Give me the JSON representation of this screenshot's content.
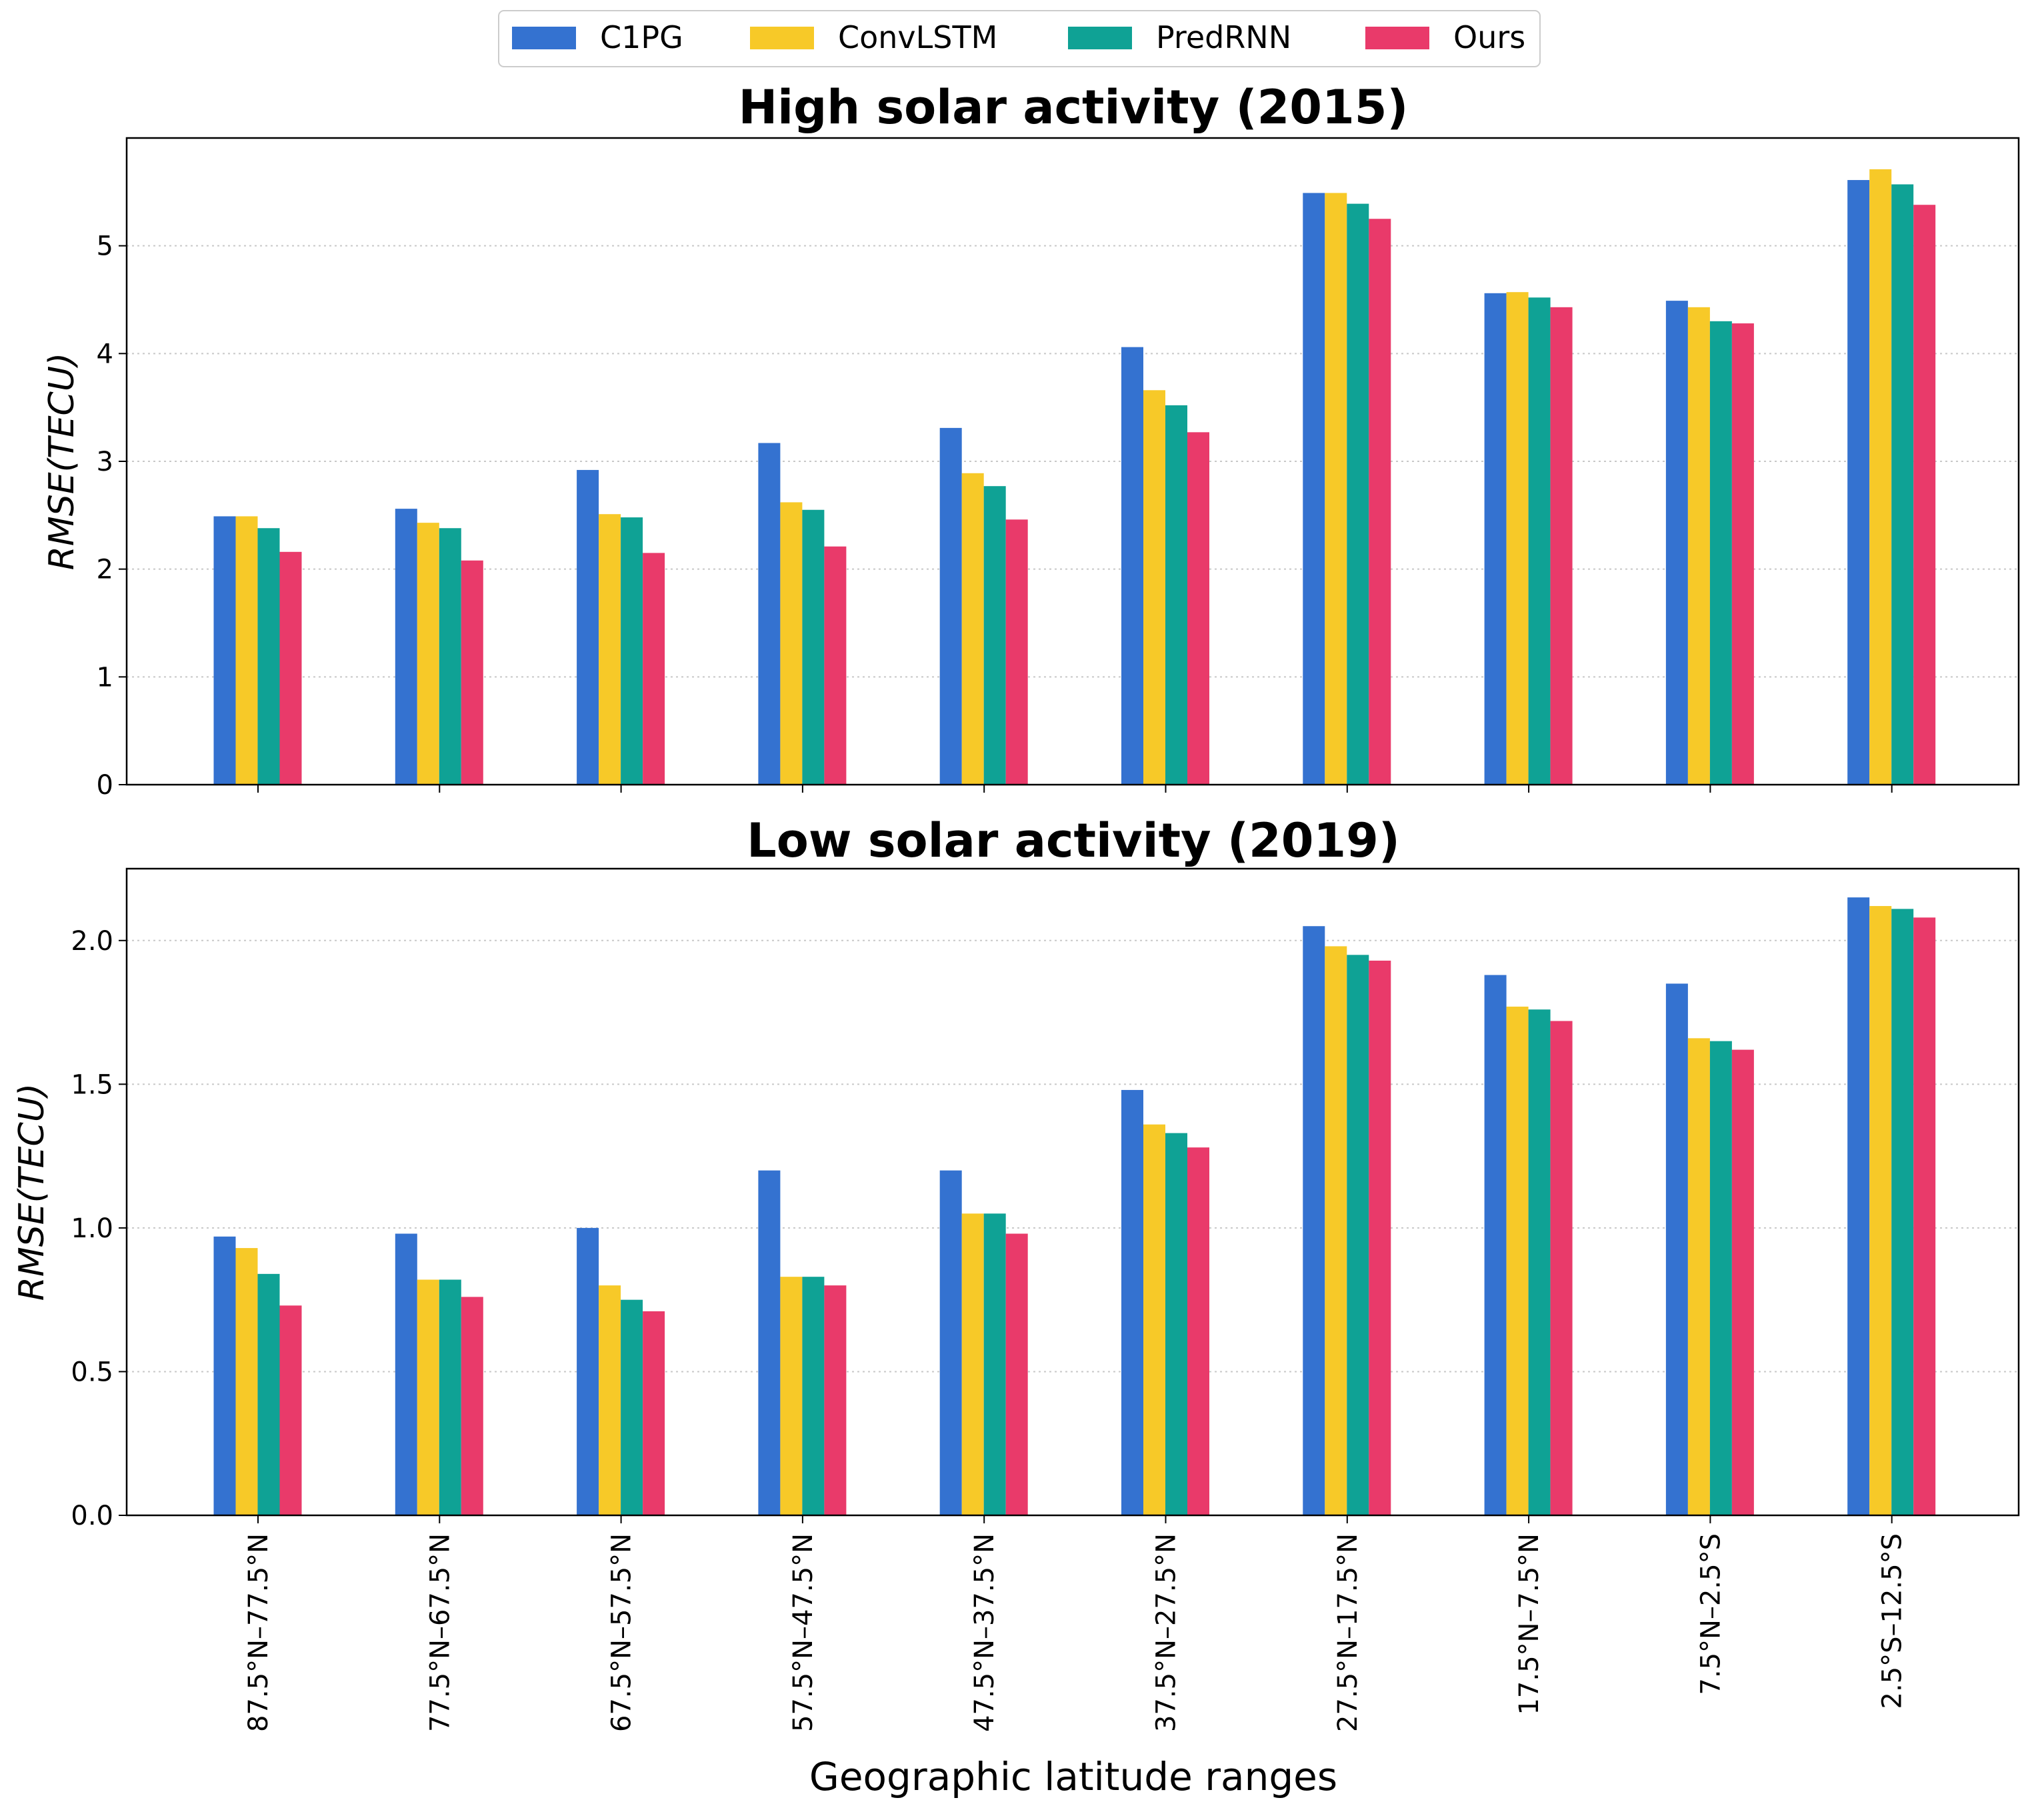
{
  "legend": {
    "items": [
      {
        "label": "C1PG",
        "color": "#3472d0"
      },
      {
        "label": "ConvLSTM",
        "color": "#f7c928"
      },
      {
        "label": "PredRNN",
        "color": "#0fa295"
      },
      {
        "label": "Ours",
        "color": "#e93a6a"
      }
    ]
  },
  "xlabel": "Geographic latitude ranges",
  "chart_data": [
    {
      "type": "bar",
      "title": "High solar activity (2015)",
      "ylabel": "RMSE(TECU)",
      "xlabel": "Geographic latitude ranges",
      "ylim": [
        0,
        6
      ],
      "yticks": [
        0,
        1,
        2,
        3,
        4,
        5
      ],
      "ytick_labels": [
        "0",
        "1",
        "2",
        "3",
        "4",
        "5"
      ],
      "grid": "horizontal dotted",
      "categories": [
        "87.5°N–77.5°N",
        "77.5°N–67.5°N",
        "67.5°N–57.5°N",
        "57.5°N–47.5°N",
        "47.5°N–37.5°N",
        "37.5°N–27.5°N",
        "27.5°N–17.5°N",
        "17.5°N–7.5°N",
        "7.5°N–2.5°S",
        "2.5°S–12.5°S"
      ],
      "series": [
        {
          "name": "C1PG",
          "values": [
            2.49,
            2.56,
            2.92,
            3.17,
            3.31,
            4.06,
            5.49,
            4.56,
            4.49,
            5.61
          ]
        },
        {
          "name": "ConvLSTM",
          "values": [
            2.49,
            2.43,
            2.51,
            2.62,
            2.89,
            3.66,
            5.49,
            4.57,
            4.43,
            5.71
          ]
        },
        {
          "name": "PredRNN",
          "values": [
            2.38,
            2.38,
            2.48,
            2.55,
            2.77,
            3.52,
            5.39,
            4.52,
            4.3,
            5.57
          ]
        },
        {
          "name": "Ours",
          "values": [
            2.16,
            2.08,
            2.15,
            2.21,
            2.46,
            3.27,
            5.25,
            4.43,
            4.28,
            5.38
          ]
        }
      ]
    },
    {
      "type": "bar",
      "title": "Low solar activity (2019)",
      "ylabel": "RMSE(TECU)",
      "xlabel": "Geographic latitude ranges",
      "ylim": [
        0,
        2.25
      ],
      "yticks": [
        0,
        0.5,
        1,
        1.5,
        2
      ],
      "ytick_labels": [
        "0.0",
        "0.5",
        "1.0",
        "1.5",
        "2.0"
      ],
      "grid": "horizontal dotted",
      "categories": [
        "87.5°N–77.5°N",
        "77.5°N–67.5°N",
        "67.5°N–57.5°N",
        "57.5°N–47.5°N",
        "47.5°N–37.5°N",
        "37.5°N–27.5°N",
        "27.5°N–17.5°N",
        "17.5°N–7.5°N",
        "7.5°N–2.5°S",
        "2.5°S–12.5°S"
      ],
      "series": [
        {
          "name": "C1PG",
          "values": [
            0.97,
            0.98,
            1.0,
            1.2,
            1.2,
            1.48,
            2.05,
            1.88,
            1.85,
            2.15
          ]
        },
        {
          "name": "ConvLSTM",
          "values": [
            0.93,
            0.82,
            0.8,
            0.83,
            1.05,
            1.36,
            1.98,
            1.77,
            1.66,
            2.12
          ]
        },
        {
          "name": "PredRNN",
          "values": [
            0.84,
            0.82,
            0.75,
            0.83,
            1.05,
            1.33,
            1.95,
            1.76,
            1.65,
            2.11
          ]
        },
        {
          "name": "Ours",
          "values": [
            0.73,
            0.76,
            0.71,
            0.8,
            0.98,
            1.28,
            1.93,
            1.72,
            1.62,
            2.08
          ]
        }
      ]
    }
  ]
}
